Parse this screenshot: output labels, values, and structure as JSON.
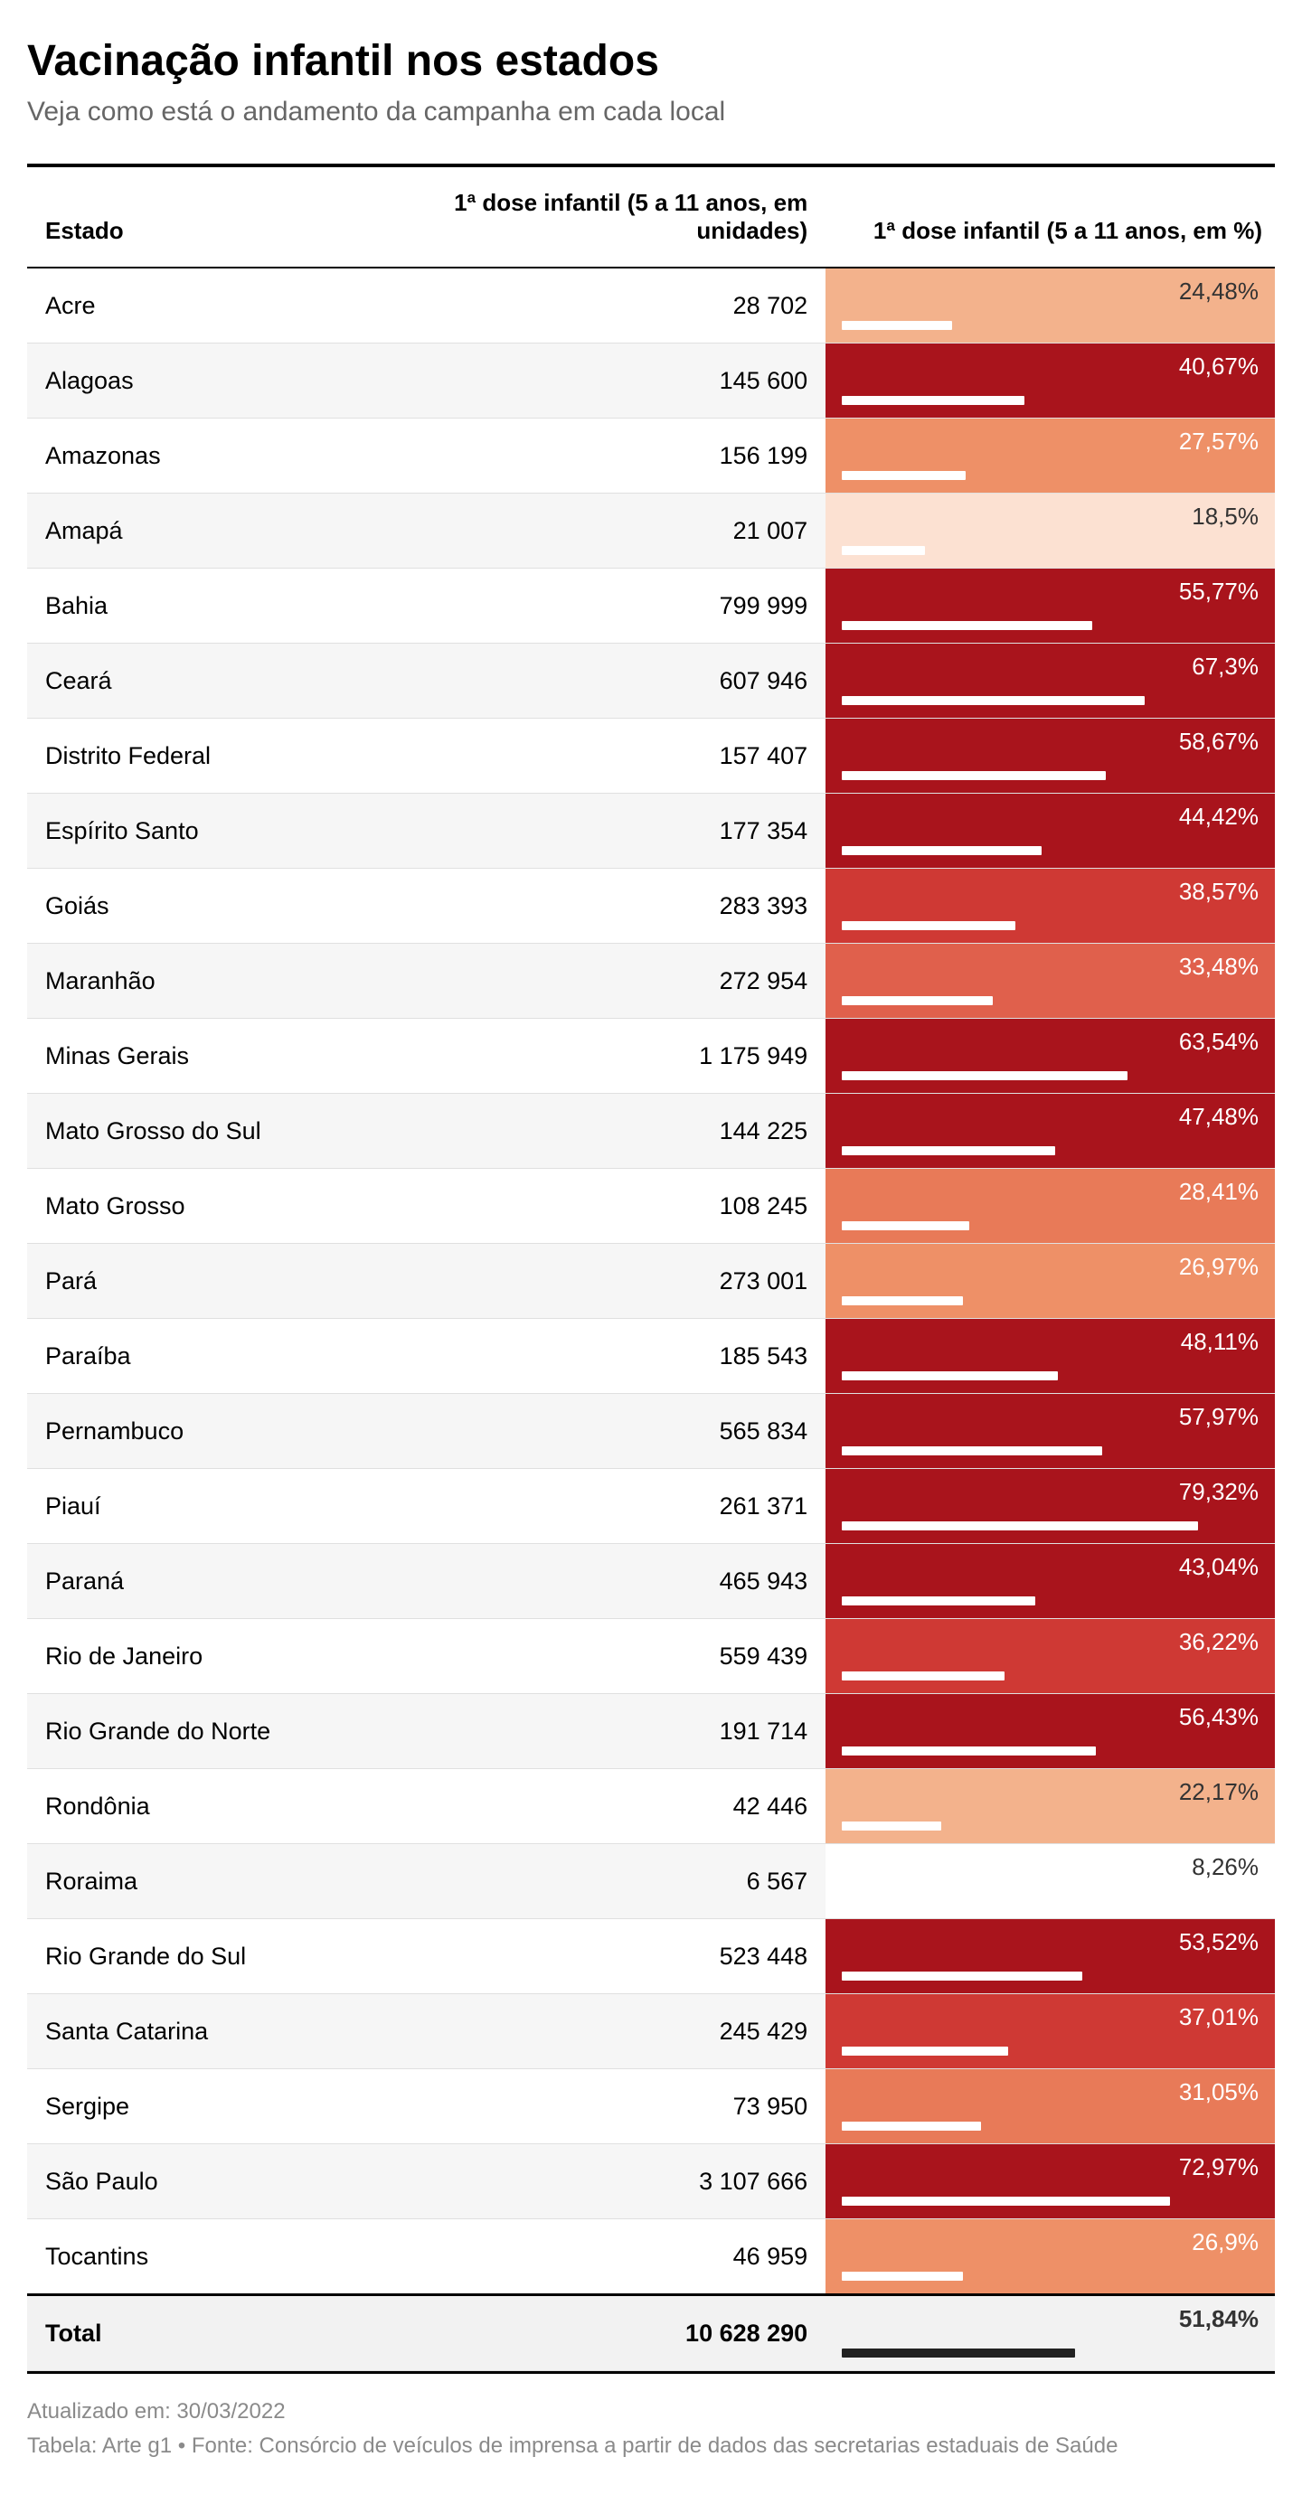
{
  "title": "Vacinação infantil nos estados",
  "subtitle": "Veja como está o andamento da campanha em cada local",
  "columns": {
    "state": "Estado",
    "units": "1ª dose infantil (5 a 11 anos, em unidades)",
    "pct": "1ª dose infantil (5 a 11 anos, em %)"
  },
  "bar_colors": {
    "bar_fill": "#ffffff",
    "bar_fill_dark": "#222222",
    "text_light": "#ffffff",
    "text_dark": "#333333"
  },
  "color_scale": [
    {
      "max": 10,
      "bg": "#ffffff"
    },
    {
      "max": 20,
      "bg": "#fce1d2"
    },
    {
      "max": 25,
      "bg": "#f3b28c"
    },
    {
      "max": 28,
      "bg": "#ee9067"
    },
    {
      "max": 32,
      "bg": "#e87a58"
    },
    {
      "max": 36,
      "bg": "#e0604c"
    },
    {
      "max": 40,
      "bg": "#cf3934"
    },
    {
      "max": 100,
      "bg": "#a9141c"
    }
  ],
  "pct_bar_max": 100,
  "rows": [
    {
      "state": "Acre",
      "units": "28 702",
      "pct_text": "24,48%",
      "pct": 24.48
    },
    {
      "state": "Alagoas",
      "units": "145 600",
      "pct_text": "40,67%",
      "pct": 40.67
    },
    {
      "state": "Amazonas",
      "units": "156 199",
      "pct_text": "27,57%",
      "pct": 27.57
    },
    {
      "state": "Amapá",
      "units": "21 007",
      "pct_text": "18,5%",
      "pct": 18.5
    },
    {
      "state": "Bahia",
      "units": "799 999",
      "pct_text": "55,77%",
      "pct": 55.77
    },
    {
      "state": "Ceará",
      "units": "607 946",
      "pct_text": "67,3%",
      "pct": 67.3
    },
    {
      "state": "Distrito Federal",
      "units": "157 407",
      "pct_text": "58,67%",
      "pct": 58.67
    },
    {
      "state": "Espírito Santo",
      "units": "177 354",
      "pct_text": "44,42%",
      "pct": 44.42
    },
    {
      "state": "Goiás",
      "units": "283 393",
      "pct_text": "38,57%",
      "pct": 38.57
    },
    {
      "state": "Maranhão",
      "units": "272 954",
      "pct_text": "33,48%",
      "pct": 33.48
    },
    {
      "state": "Minas Gerais",
      "units": "1 175 949",
      "pct_text": "63,54%",
      "pct": 63.54
    },
    {
      "state": "Mato Grosso do Sul",
      "units": "144 225",
      "pct_text": "47,48%",
      "pct": 47.48
    },
    {
      "state": "Mato Grosso",
      "units": "108 245",
      "pct_text": "28,41%",
      "pct": 28.41
    },
    {
      "state": "Pará",
      "units": "273 001",
      "pct_text": "26,97%",
      "pct": 26.97
    },
    {
      "state": "Paraíba",
      "units": "185 543",
      "pct_text": "48,11%",
      "pct": 48.11
    },
    {
      "state": "Pernambuco",
      "units": "565 834",
      "pct_text": "57,97%",
      "pct": 57.97
    },
    {
      "state": "Piauí",
      "units": "261 371",
      "pct_text": "79,32%",
      "pct": 79.32
    },
    {
      "state": "Paraná",
      "units": "465 943",
      "pct_text": "43,04%",
      "pct": 43.04
    },
    {
      "state": "Rio de Janeiro",
      "units": "559 439",
      "pct_text": "36,22%",
      "pct": 36.22
    },
    {
      "state": "Rio Grande do Norte",
      "units": "191 714",
      "pct_text": "56,43%",
      "pct": 56.43
    },
    {
      "state": "Rondônia",
      "units": "42 446",
      "pct_text": "22,17%",
      "pct": 22.17
    },
    {
      "state": "Roraima",
      "units": "6 567",
      "pct_text": "8,26%",
      "pct": 8.26
    },
    {
      "state": "Rio Grande do Sul",
      "units": "523 448",
      "pct_text": "53,52%",
      "pct": 53.52
    },
    {
      "state": "Santa Catarina",
      "units": "245 429",
      "pct_text": "37,01%",
      "pct": 37.01
    },
    {
      "state": "Sergipe",
      "units": "73 950",
      "pct_text": "31,05%",
      "pct": 31.05
    },
    {
      "state": "São Paulo",
      "units": "3 107 666",
      "pct_text": "72,97%",
      "pct": 72.97
    },
    {
      "state": "Tocantins",
      "units": "46 959",
      "pct_text": "26,9%",
      "pct": 26.9
    }
  ],
  "total": {
    "state": "Total",
    "units": "10 628 290",
    "pct_text": "51,84%",
    "pct": 51.84
  },
  "footer": {
    "updated": "Atualizado em: 30/03/2022",
    "source": "Tabela: Arte g1 • Fonte: Consórcio de veículos de imprensa a partir de dados das secretarias estaduais de Saúde"
  }
}
